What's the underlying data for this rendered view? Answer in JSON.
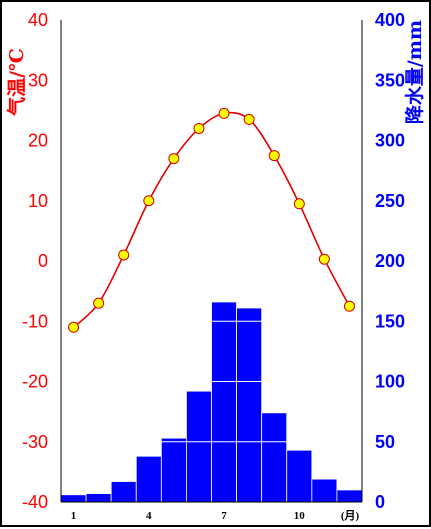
{
  "chart_data": {
    "type": "climate-chart",
    "x": [
      1,
      2,
      3,
      4,
      5,
      6,
      7,
      8,
      9,
      10,
      11,
      12
    ],
    "x_tick_labels": [
      "1",
      "4",
      "7",
      "10"
    ],
    "x_unit_label": "(月)",
    "series": [
      {
        "kind": "line",
        "axis": "left",
        "values": [
          -11,
          -7,
          1,
          10,
          17,
          22,
          24.5,
          23.5,
          17.5,
          9.5,
          0.3,
          -7.5
        ],
        "color": "#e00000",
        "marker_color": "#ffff00"
      },
      {
        "kind": "bar",
        "axis": "right",
        "values": [
          6,
          7,
          17,
          38,
          53,
          92,
          166,
          161,
          74,
          43,
          19,
          10
        ],
        "color": "#0000ff"
      }
    ],
    "y_left": {
      "label": "气温/℃",
      "range": [
        -40,
        40
      ],
      "ticks": [
        40,
        30,
        20,
        10,
        0,
        -10,
        -20,
        -30,
        -40
      ],
      "color": "#ff0000"
    },
    "y_right": {
      "label": "降水量/mm",
      "range": [
        0,
        400
      ],
      "ticks": [
        400,
        350,
        300,
        250,
        200,
        150,
        100,
        50,
        0
      ],
      "color": "#0000ff"
    }
  }
}
